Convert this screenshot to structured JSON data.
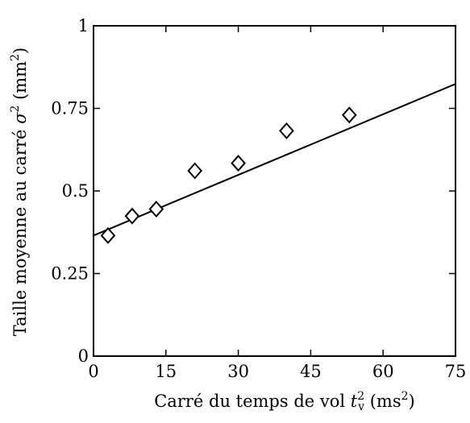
{
  "chart_data": {
    "type": "scatter",
    "xlabel": "Carré du temps de vol t_v^2 (ms^2)",
    "ylabel": "Taille moyenne au carré σ^2 (mm^2)",
    "xlabel_parts": {
      "prefix": "Carré du temps de vol ",
      "var": "t",
      "var_sup": "2",
      "var_sub": "v",
      "unit_open": " (ms",
      "unit_sup": "2",
      "unit_close": ")"
    },
    "ylabel_parts": {
      "prefix": "Taille moyenne au carré ",
      "var": "σ",
      "var_sup": "2",
      "unit_open": " (mm",
      "unit_sup": "2",
      "unit_close": ")"
    },
    "xlim": [
      0,
      75
    ],
    "ylim": [
      0,
      1
    ],
    "xticks": [
      0,
      15,
      30,
      45,
      60,
      75
    ],
    "yticks": [
      0,
      0.25,
      0.5,
      0.75,
      1
    ],
    "xtick_labels": [
      "0",
      "15",
      "30",
      "45",
      "60",
      "75"
    ],
    "ytick_labels": [
      "0",
      "0.25",
      "0.5",
      "0.75",
      "1"
    ],
    "grid": false,
    "series": [
      {
        "marker": "diamond",
        "x": [
          3,
          8,
          13,
          21,
          30,
          40,
          53
        ],
        "y": [
          0.365,
          0.424,
          0.445,
          0.561,
          0.584,
          0.682,
          0.73
        ]
      }
    ],
    "fit_line": {
      "x": [
        0,
        75
      ],
      "y": [
        0.365,
        0.824
      ]
    },
    "colors": {
      "marks": "#000000",
      "background": "#ffffff"
    }
  }
}
